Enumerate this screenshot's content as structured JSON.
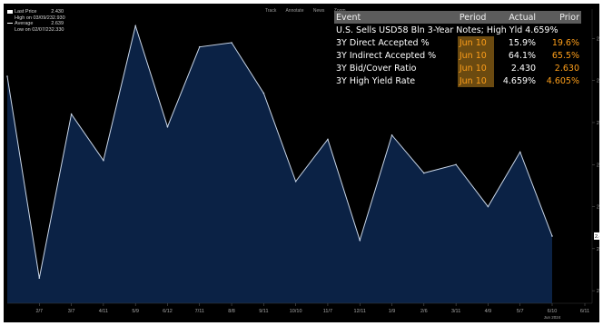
{
  "legend": {
    "items": [
      {
        "label": "Last Price",
        "value": "2.430",
        "swatch": "#ffffff"
      },
      {
        "label": "High on 03/09/23",
        "value": "2.930",
        "swatch": ""
      },
      {
        "label": "Average",
        "value": "2.639",
        "swatch": "#ffffff"
      },
      {
        "label": "Low on 02/07/23",
        "value": "2.330",
        "swatch": ""
      }
    ]
  },
  "toolbar": {
    "items": [
      "Track",
      "Annotate",
      "News",
      "Zoom"
    ]
  },
  "event_table": {
    "headers": {
      "event": "Event",
      "period": "Period",
      "actual": "Actual",
      "prior": "Prior"
    },
    "headline": "U.S. Sells USD58 Bln 3-Year Notes; High Yld 4.659%",
    "rows": [
      {
        "event": "3Y Direct Accepted %",
        "period": "Jun 10",
        "actual": "15.9%",
        "prior": "19.6%"
      },
      {
        "event": "3Y Indirect Accepted %",
        "period": "Jun 10",
        "actual": "64.1%",
        "prior": "65.5%"
      },
      {
        "event": "3Y Bid/Cover Ratio",
        "period": "Jun 10",
        "actual": "2.430",
        "prior": "2.630"
      },
      {
        "event": "3Y High Yield Rate",
        "period": "Jun 10",
        "actual": "4.659%",
        "prior": "4.605%"
      }
    ]
  },
  "chart_data": {
    "type": "area",
    "title": "",
    "xlabel": "",
    "ylabel": "",
    "x": [
      "",
      "2/7",
      "3/7",
      "4/11",
      "5/9",
      "6/12",
      "7/11",
      "8/8",
      "9/11",
      "10/10",
      "11/7",
      "12/11",
      "1/9",
      "2/6",
      "3/11",
      "4/9",
      "5/7",
      "6/10"
    ],
    "x_ticks": [
      "2/7",
      "3/7",
      "4/11",
      "5/9",
      "6/12",
      "7/11",
      "8/8",
      "9/11",
      "10/10",
      "11/7",
      "12/11",
      "1/9",
      "2/6",
      "3/11",
      "4/9",
      "5/7",
      "6/10",
      "6/11"
    ],
    "x_sublabel": "Jun 2024",
    "y_ticks": [
      "2.90",
      "2.80",
      "2.70",
      "2.60",
      "2.50",
      "2.40",
      "2.30"
    ],
    "last_value_label": "2.430",
    "ylim": [
      2.27,
      2.97
    ],
    "series": [
      {
        "values": [
          2.81,
          2.33,
          2.72,
          2.61,
          2.93,
          2.69,
          2.88,
          2.89,
          2.77,
          2.56,
          2.66,
          2.42,
          2.67,
          2.58,
          2.6,
          2.5,
          2.63,
          2.43
        ]
      }
    ],
    "colors": {
      "area_fill": "#0b2245",
      "line": "#c9d6e8",
      "axis_text": "#a8a8a8"
    },
    "grid": false,
    "legend_position": "top-left"
  }
}
